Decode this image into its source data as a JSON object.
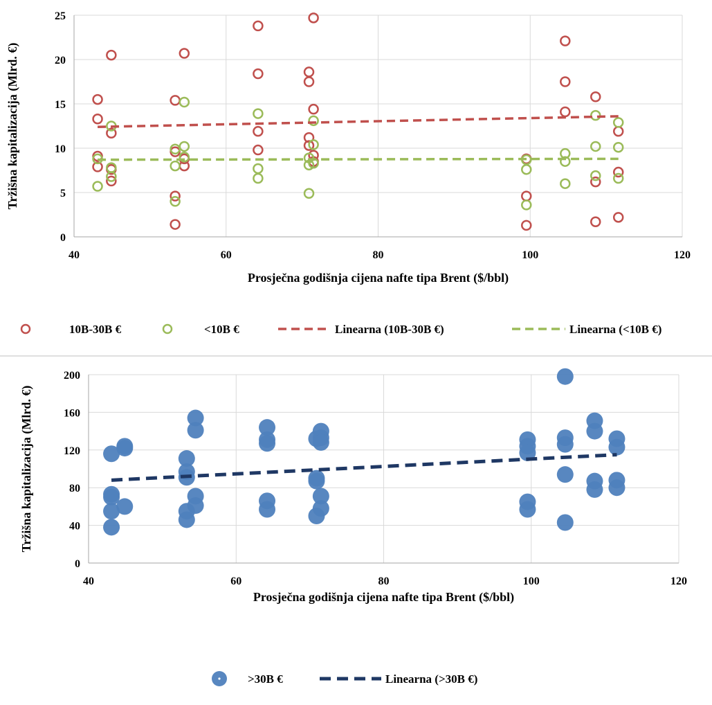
{
  "chart_data": [
    {
      "type": "scatter",
      "xlabel": "Prosječna godišnja cijena nafte tipa Brent ($/bbl)",
      "ylabel": "Tržišna kapitalizacija (Mlrd. €)",
      "xlim": [
        40,
        120
      ],
      "ylim": [
        0,
        25
      ],
      "xticks": [
        40,
        60,
        80,
        100,
        120
      ],
      "yticks": [
        0,
        5,
        10,
        15,
        20,
        25
      ],
      "grid": true,
      "legend_position": "bottom",
      "series": [
        {
          "name": "10B-30B €",
          "marker": "open-circle",
          "color": "#c0504d",
          "points": [
            [
              43.1,
              15.5
            ],
            [
              43.1,
              13.3
            ],
            [
              43.1,
              9.1
            ],
            [
              43.1,
              7.9
            ],
            [
              44.9,
              20.5
            ],
            [
              44.9,
              11.7
            ],
            [
              44.9,
              7.6
            ],
            [
              44.9,
              6.3
            ],
            [
              53.3,
              15.4
            ],
            [
              53.3,
              9.6
            ],
            [
              53.3,
              4.6
            ],
            [
              53.3,
              1.4
            ],
            [
              54.5,
              20.7
            ],
            [
              54.5,
              8.8
            ],
            [
              54.5,
              8.0
            ],
            [
              64.2,
              23.8
            ],
            [
              64.2,
              18.4
            ],
            [
              64.2,
              11.9
            ],
            [
              64.2,
              9.8
            ],
            [
              70.9,
              18.6
            ],
            [
              70.9,
              17.5
            ],
            [
              70.9,
              11.2
            ],
            [
              70.9,
              10.3
            ],
            [
              71.5,
              24.7
            ],
            [
              71.5,
              14.4
            ],
            [
              71.5,
              9.2
            ],
            [
              71.5,
              8.5
            ],
            [
              99.5,
              8.8
            ],
            [
              99.5,
              4.6
            ],
            [
              99.5,
              1.3
            ],
            [
              104.6,
              22.1
            ],
            [
              104.6,
              17.5
            ],
            [
              104.6,
              14.1
            ],
            [
              108.6,
              15.8
            ],
            [
              108.6,
              6.2
            ],
            [
              108.6,
              1.7
            ],
            [
              111.6,
              11.9
            ],
            [
              111.6,
              7.3
            ],
            [
              111.6,
              2.2
            ]
          ]
        },
        {
          "name": "<10B €",
          "marker": "open-circle",
          "color": "#9bbb59",
          "points": [
            [
              43.1,
              8.8
            ],
            [
              43.1,
              5.7
            ],
            [
              44.9,
              12.5
            ],
            [
              44.9,
              7.8
            ],
            [
              44.9,
              6.8
            ],
            [
              53.3,
              9.9
            ],
            [
              53.3,
              8.0
            ],
            [
              53.3,
              4.0
            ],
            [
              54.5,
              15.2
            ],
            [
              54.5,
              10.2
            ],
            [
              54.5,
              9.0
            ],
            [
              64.2,
              13.9
            ],
            [
              64.2,
              7.7
            ],
            [
              64.2,
              6.6
            ],
            [
              70.9,
              8.9
            ],
            [
              70.9,
              8.1
            ],
            [
              70.9,
              4.9
            ],
            [
              71.5,
              13.1
            ],
            [
              71.5,
              10.4
            ],
            [
              71.5,
              8.3
            ],
            [
              99.5,
              8.7
            ],
            [
              99.5,
              7.6
            ],
            [
              99.5,
              3.6
            ],
            [
              104.6,
              9.4
            ],
            [
              104.6,
              8.5
            ],
            [
              104.6,
              6.0
            ],
            [
              108.6,
              13.7
            ],
            [
              108.6,
              10.2
            ],
            [
              108.6,
              6.9
            ],
            [
              111.6,
              12.9
            ],
            [
              111.6,
              10.1
            ],
            [
              111.6,
              6.6
            ]
          ]
        },
        {
          "name": "Linearna (10B-30B €)",
          "type": "trendline",
          "style": "dashed",
          "color": "#c0504d",
          "points": [
            [
              43.1,
              12.4
            ],
            [
              111.6,
              13.6
            ]
          ]
        },
        {
          "name": "Linearna (<10B €)",
          "type": "trendline",
          "style": "dashed",
          "color": "#9bbb59",
          "points": [
            [
              43.1,
              8.7
            ],
            [
              111.6,
              8.8
            ]
          ]
        }
      ]
    },
    {
      "type": "scatter",
      "xlabel": "Prosječna godišnja cijena nafte tipa Brent ($/bbl)",
      "ylabel": "Tržišna kapitalizacija (Mlrd. €)",
      "xlim": [
        40,
        120
      ],
      "ylim": [
        0,
        200
      ],
      "xticks": [
        40,
        60,
        80,
        100,
        120
      ],
      "yticks": [
        0,
        40,
        80,
        120,
        160,
        200
      ],
      "grid": true,
      "legend_position": "bottom",
      "series": [
        {
          "name": ">30B €",
          "marker": "filled-circle",
          "color": "#4f81bd",
          "points": [
            [
              43.1,
              116
            ],
            [
              43.1,
              73
            ],
            [
              43.1,
              70
            ],
            [
              43.1,
              55
            ],
            [
              43.1,
              38
            ],
            [
              44.9,
              124
            ],
            [
              44.9,
              122
            ],
            [
              44.9,
              60
            ],
            [
              53.3,
              111
            ],
            [
              53.3,
              97
            ],
            [
              53.3,
              91
            ],
            [
              53.3,
              55
            ],
            [
              53.3,
              46
            ],
            [
              54.5,
              154
            ],
            [
              54.5,
              141
            ],
            [
              54.5,
              71
            ],
            [
              54.5,
              61
            ],
            [
              64.2,
              144
            ],
            [
              64.2,
              131
            ],
            [
              64.2,
              127
            ],
            [
              64.2,
              66
            ],
            [
              64.2,
              57
            ],
            [
              70.9,
              132
            ],
            [
              70.9,
              90
            ],
            [
              70.9,
              87
            ],
            [
              70.9,
              50
            ],
            [
              71.5,
              140
            ],
            [
              71.5,
              133
            ],
            [
              71.5,
              128
            ],
            [
              71.5,
              71
            ],
            [
              71.5,
              58
            ],
            [
              99.5,
              131
            ],
            [
              99.5,
              124
            ],
            [
              99.5,
              117
            ],
            [
              99.5,
              65
            ],
            [
              99.5,
              57
            ],
            [
              104.6,
              198
            ],
            [
              104.6,
              133
            ],
            [
              104.6,
              126
            ],
            [
              104.6,
              94
            ],
            [
              104.6,
              43
            ],
            [
              108.6,
              151
            ],
            [
              108.6,
              140
            ],
            [
              108.6,
              87
            ],
            [
              108.6,
              78
            ],
            [
              111.6,
              132
            ],
            [
              111.6,
              123
            ],
            [
              111.6,
              88
            ],
            [
              111.6,
              80
            ]
          ]
        },
        {
          "name": "Linearna (>30B €)",
          "type": "trendline",
          "style": "dashed",
          "color": "#1f3864",
          "points": [
            [
              43.1,
              88
            ],
            [
              111.6,
              115
            ]
          ]
        }
      ]
    }
  ]
}
